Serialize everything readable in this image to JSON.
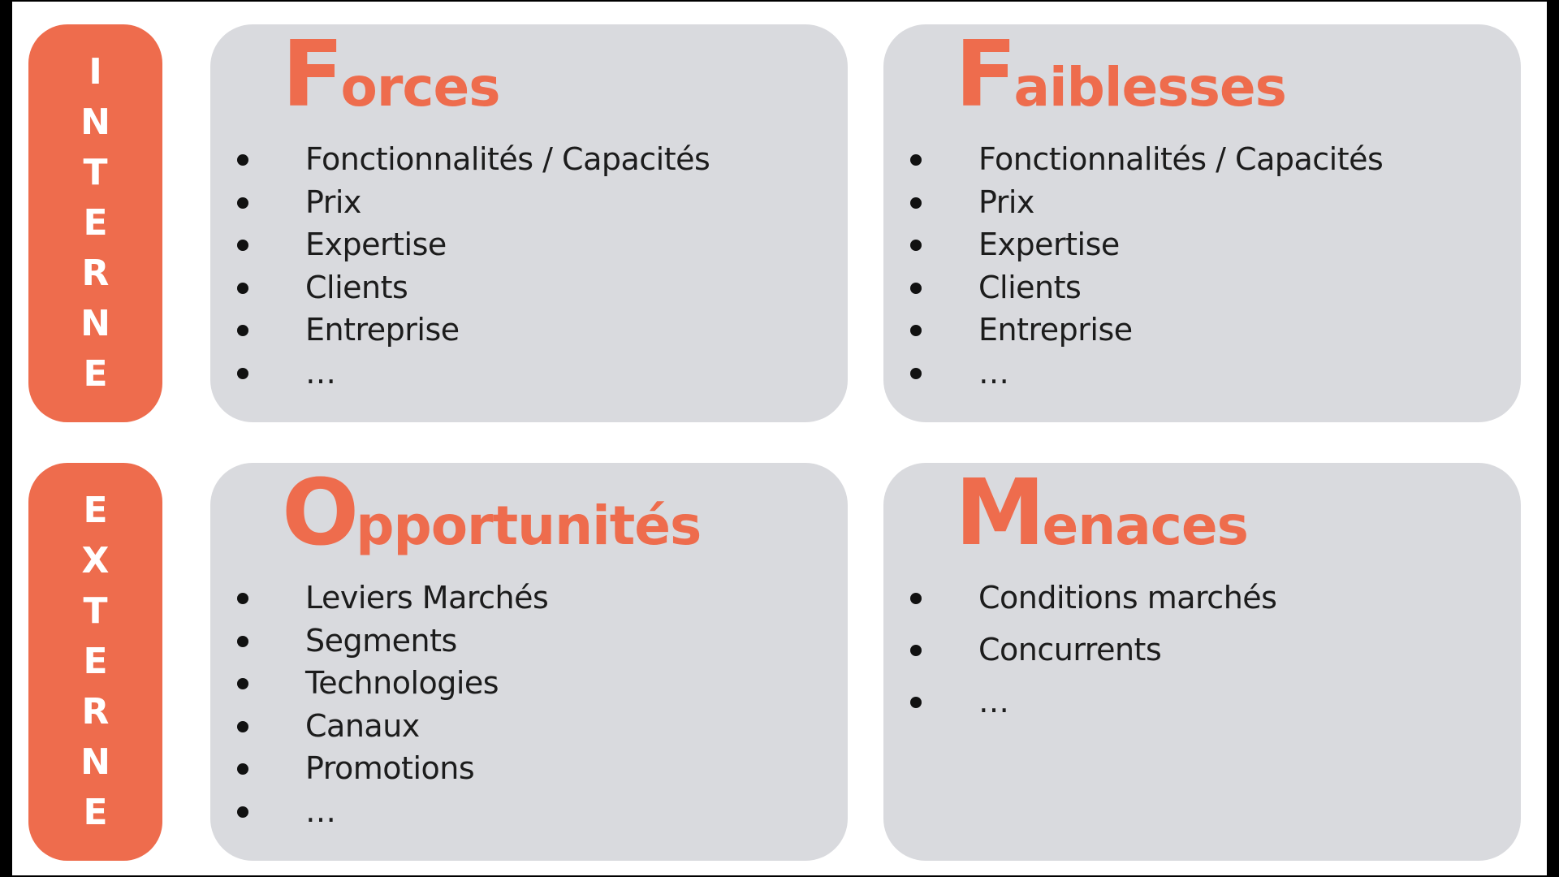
{
  "colors": {
    "accent": "#ee6c4d",
    "card_background": "#d9dade",
    "text": "#1c1c1c",
    "slide_background": "#ffffff",
    "frame": "#000000"
  },
  "side_labels": {
    "interne": {
      "text": "INTERNE",
      "letters": [
        "I",
        "N",
        "T",
        "E",
        "R",
        "N",
        "E"
      ]
    },
    "externe": {
      "text": "EXTERNE",
      "letters": [
        "E",
        "X",
        "T",
        "E",
        "R",
        "N",
        "E"
      ]
    }
  },
  "quadrants": {
    "forces": {
      "initial": "F",
      "rest": "orces",
      "items": [
        "Fonctionnalités / Capacités",
        "Prix",
        "Expertise",
        "Clients",
        "Entreprise",
        "…"
      ]
    },
    "faiblesses": {
      "initial": "F",
      "rest": "aiblesses",
      "items": [
        "Fonctionnalités / Capacités",
        "Prix",
        "Expertise",
        "Clients",
        "Entreprise",
        "…"
      ]
    },
    "opportunites": {
      "initial": "O",
      "rest": "pportunités",
      "items": [
        "Leviers Marchés",
        "Segments",
        "Technologies",
        "Canaux",
        "Promotions",
        "…"
      ]
    },
    "menaces": {
      "initial": "M",
      "rest": "enaces",
      "items": [
        "Conditions marchés",
        "Concurrents",
        "…"
      ]
    }
  }
}
